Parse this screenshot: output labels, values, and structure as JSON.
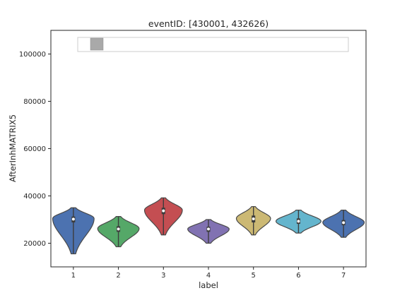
{
  "chart_data": {
    "type": "violin",
    "title": "eventID: [430001, 432626)",
    "xlabel": "label",
    "ylabel": "AfterInhMATRIX5",
    "categories": [
      "1",
      "2",
      "3",
      "4",
      "5",
      "6",
      "7"
    ],
    "ylim": [
      10000,
      110000
    ],
    "yticks": [
      20000,
      40000,
      60000,
      80000,
      100000
    ],
    "ytick_labels": [
      "20000",
      "40000",
      "60000",
      "80000",
      "100000"
    ],
    "grid": false,
    "legend": "top, empty frame with a single gray swatch",
    "colors": [
      "#4c72b0",
      "#55a868",
      "#c44e52",
      "#8172b2",
      "#ccb974",
      "#64b5cd",
      "#4c72b0"
    ],
    "violins": [
      {
        "category": "1",
        "min": 15500,
        "q1": 28800,
        "median": 30200,
        "q3": 31300,
        "max": 35000,
        "peak": 30500,
        "width": 0.46
      },
      {
        "category": "2",
        "min": 18500,
        "q1": 24800,
        "median": 26000,
        "q3": 27200,
        "max": 31300,
        "peak": 26200,
        "width": 0.46
      },
      {
        "category": "3",
        "min": 23500,
        "q1": 32300,
        "median": 33700,
        "q3": 35000,
        "max": 39200,
        "peak": 34000,
        "width": 0.42
      },
      {
        "category": "4",
        "min": 20000,
        "q1": 24800,
        "median": 26000,
        "q3": 27000,
        "max": 30000,
        "peak": 26000,
        "width": 0.46
      },
      {
        "category": "5",
        "min": 23500,
        "q1": 28800,
        "median": 30300,
        "q3": 31700,
        "max": 35500,
        "peak": 30500,
        "width": 0.38
      },
      {
        "category": "6",
        "min": 24300,
        "q1": 28200,
        "median": 29300,
        "q3": 30500,
        "max": 34000,
        "peak": 29300,
        "width": 0.5
      },
      {
        "category": "7",
        "min": 22500,
        "q1": 27600,
        "median": 28700,
        "q3": 29800,
        "max": 34000,
        "peak": 28800,
        "width": 0.46
      }
    ]
  }
}
